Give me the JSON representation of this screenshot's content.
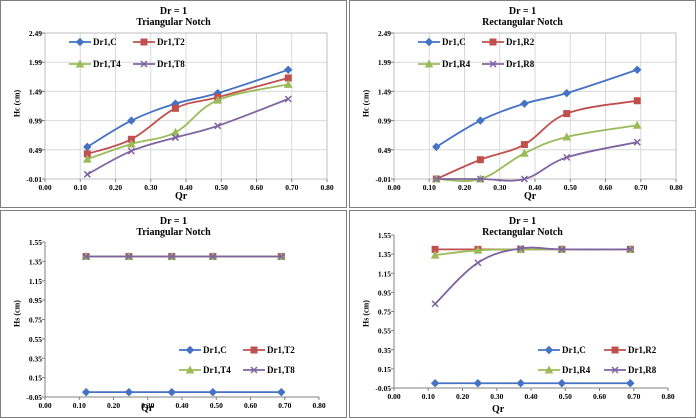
{
  "colors": {
    "C": "#4472c4",
    "T2": "#c0504d",
    "T4": "#9bbb59",
    "T8": "#8064a2"
  },
  "chart_data": [
    {
      "type": "line",
      "title": "Dr = 1",
      "subtitle": "Triangular Notch",
      "xlabel": "Qr",
      "ylabel": "Hc (cm)",
      "xlim": [
        0.0,
        0.8
      ],
      "ylim": [
        -0.01,
        2.49
      ],
      "xticks": [
        "0.00",
        "0.10",
        "0.20",
        "0.30",
        "0.40",
        "0.50",
        "0.60",
        "0.70",
        "0.80"
      ],
      "yticks": [
        "-0.01",
        "0.49",
        "0.99",
        "1.49",
        "1.99",
        "2.49"
      ],
      "grid": true,
      "legend_position": "top-left",
      "series": [
        {
          "name": "Dr1,C",
          "marker": "diamond",
          "x": [
            0.12,
            0.245,
            0.37,
            0.49,
            0.69
          ],
          "y": [
            0.54,
            0.99,
            1.28,
            1.46,
            1.86
          ]
        },
        {
          "name": "Dr1,T2",
          "marker": "square",
          "x": [
            0.12,
            0.245,
            0.37,
            0.49,
            0.69
          ],
          "y": [
            0.42,
            0.67,
            1.2,
            1.39,
            1.72
          ]
        },
        {
          "name": "Dr1,T4",
          "marker": "triangle",
          "x": [
            0.12,
            0.245,
            0.37,
            0.49,
            0.69
          ],
          "y": [
            0.33,
            0.59,
            0.79,
            1.34,
            1.61
          ]
        },
        {
          "name": "Dr1,T8",
          "marker": "x",
          "x": [
            0.12,
            0.245,
            0.37,
            0.49,
            0.69
          ],
          "y": [
            0.07,
            0.47,
            0.7,
            0.9,
            1.36
          ]
        }
      ]
    },
    {
      "type": "line",
      "title": "Dr = 1",
      "subtitle": "Rectangular Notch",
      "xlabel": "Qr",
      "ylabel": "Hc (cm)",
      "xlim": [
        0.0,
        0.8
      ],
      "ylim": [
        -0.01,
        2.49
      ],
      "xticks": [
        "0.00",
        "0.10",
        "0.20",
        "0.30",
        "0.40",
        "0.50",
        "0.60",
        "0.70",
        "0.80"
      ],
      "yticks": [
        "-0.01",
        "0.49",
        "0.99",
        "1.49",
        "1.99",
        "2.49"
      ],
      "grid": true,
      "legend_position": "top-left",
      "series": [
        {
          "name": "Dr1,C",
          "marker": "diamond",
          "x": [
            0.12,
            0.245,
            0.37,
            0.49,
            0.69
          ],
          "y": [
            0.54,
            0.99,
            1.28,
            1.46,
            1.86
          ]
        },
        {
          "name": "Dr1,R2",
          "marker": "square",
          "x": [
            0.12,
            0.245,
            0.37,
            0.49,
            0.69
          ],
          "y": [
            -0.01,
            0.32,
            0.58,
            1.11,
            1.33
          ]
        },
        {
          "name": "Dr1,R4",
          "marker": "triangle",
          "x": [
            0.12,
            0.245,
            0.37,
            0.49,
            0.69
          ],
          "y": [
            -0.01,
            -0.01,
            0.43,
            0.71,
            0.91
          ]
        },
        {
          "name": "Dr1,R8",
          "marker": "x",
          "x": [
            0.12,
            0.245,
            0.37,
            0.49,
            0.69
          ],
          "y": [
            -0.01,
            -0.01,
            -0.01,
            0.36,
            0.62
          ]
        }
      ]
    },
    {
      "type": "line",
      "title": "Dr = 1",
      "subtitle": "Triangular Notch",
      "xlabel": "Qr",
      "ylabel": "Hs (cm)",
      "xlim": [
        0.0,
        0.8
      ],
      "ylim": [
        -0.05,
        1.55
      ],
      "xticks": [
        "0.00",
        "0.10",
        "0.20",
        "0.30",
        "0.40",
        "0.50",
        "0.60",
        "0.70",
        "0.80"
      ],
      "yticks": [
        "-0.05",
        "0.15",
        "0.35",
        "0.55",
        "0.75",
        "0.95",
        "1.15",
        "1.35",
        "1.55"
      ],
      "grid": false,
      "legend_position": "bottom-center",
      "series": [
        {
          "name": "Dr1,C",
          "marker": "diamond",
          "x": [
            0.12,
            0.245,
            0.37,
            0.49,
            0.69
          ],
          "y": [
            0.0,
            0.0,
            0.0,
            0.0,
            0.0
          ]
        },
        {
          "name": "Dr1,T2",
          "marker": "square",
          "x": [
            0.12,
            0.245,
            0.37,
            0.49,
            0.69
          ],
          "y": [
            1.4,
            1.4,
            1.4,
            1.4,
            1.4
          ]
        },
        {
          "name": "Dr1,T4",
          "marker": "triangle",
          "x": [
            0.12,
            0.245,
            0.37,
            0.49,
            0.69
          ],
          "y": [
            1.4,
            1.4,
            1.4,
            1.4,
            1.4
          ]
        },
        {
          "name": "Dr1,T8",
          "marker": "x",
          "x": [
            0.12,
            0.245,
            0.37,
            0.49,
            0.69
          ],
          "y": [
            1.4,
            1.4,
            1.4,
            1.4,
            1.4
          ]
        }
      ]
    },
    {
      "type": "line",
      "title": "Dr = 1",
      "subtitle": "Rectangular Notch",
      "xlabel": "Qr",
      "ylabel": "Hs (cm)",
      "xlim": [
        0.0,
        0.8
      ],
      "ylim": [
        -0.05,
        1.55
      ],
      "xticks": [
        "0.00",
        "0.10",
        "0.20",
        "0.30",
        "0.40",
        "0.50",
        "0.60",
        "0.70",
        "0.80"
      ],
      "yticks": [
        "-0.05",
        "0.15",
        "0.35",
        "0.55",
        "0.75",
        "0.95",
        "1.15",
        "1.35",
        "1.55"
      ],
      "grid": false,
      "legend_position": "bottom-center",
      "series": [
        {
          "name": "Dr1,C",
          "marker": "diamond",
          "x": [
            0.12,
            0.245,
            0.37,
            0.49,
            0.69
          ],
          "y": [
            0.0,
            0.0,
            0.0,
            0.0,
            0.0
          ]
        },
        {
          "name": "Dr1,R2",
          "marker": "square",
          "x": [
            0.12,
            0.245,
            0.37,
            0.49,
            0.69
          ],
          "y": [
            1.4,
            1.4,
            1.4,
            1.4,
            1.4
          ]
        },
        {
          "name": "Dr1,R4",
          "marker": "triangle",
          "x": [
            0.12,
            0.245,
            0.37,
            0.49,
            0.69
          ],
          "y": [
            1.34,
            1.39,
            1.4,
            1.4,
            1.4
          ]
        },
        {
          "name": "Dr1,R8",
          "marker": "x",
          "x": [
            0.12,
            0.245,
            0.37,
            0.49,
            0.69
          ],
          "y": [
            0.83,
            1.26,
            1.41,
            1.4,
            1.4
          ]
        }
      ]
    }
  ]
}
